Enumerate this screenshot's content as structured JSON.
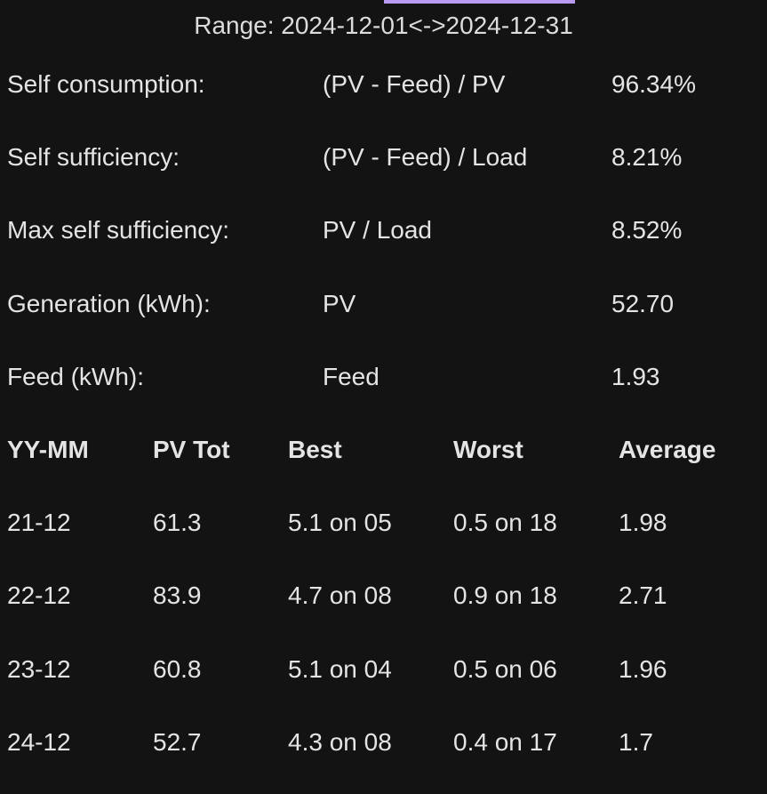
{
  "header": {
    "range": "Range: 2024-12-01<->2024-12-31",
    "accent_color": "#b99af2"
  },
  "metrics": [
    {
      "label": "Self consumption:",
      "formula": "(PV - Feed) / PV",
      "value": "96.34%"
    },
    {
      "label": "Self sufficiency:",
      "formula": "(PV - Feed) / Load",
      "value": "8.21%"
    },
    {
      "label": "Max self sufficiency:",
      "formula": "PV / Load",
      "value": "8.52%"
    },
    {
      "label": "Generation (kWh):",
      "formula": "PV",
      "value": "52.70"
    },
    {
      "label": "Feed (kWh):",
      "formula": "Feed",
      "value": "1.93"
    }
  ],
  "table": {
    "headers": [
      "YY-MM",
      "PV Tot",
      "Best",
      "Worst",
      "Average"
    ],
    "rows": [
      [
        "21-12",
        "61.3",
        "5.1 on 05",
        "0.5 on 18",
        "1.98"
      ],
      [
        "22-12",
        "83.9",
        "4.7 on 08",
        "0.9 on 18",
        "2.71"
      ],
      [
        "23-12",
        "60.8",
        "5.1 on 04",
        "0.5 on 06",
        "1.96"
      ],
      [
        "24-12",
        "52.7",
        "4.3 on 08",
        "0.4 on 17",
        "1.7"
      ]
    ]
  }
}
